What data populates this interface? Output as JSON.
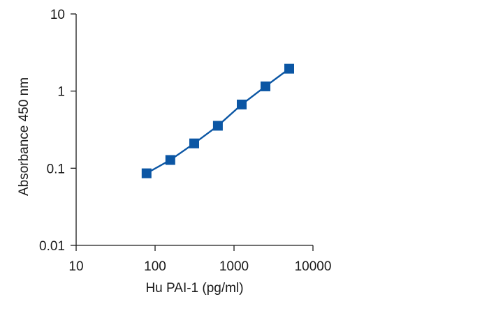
{
  "chart_data": {
    "type": "line",
    "title": "",
    "xlabel": "Hu PAI-1 (pg/ml)",
    "ylabel": "Absorbance 450 nm",
    "x_scale": "log",
    "y_scale": "log",
    "xlim": [
      10,
      10000
    ],
    "ylim": [
      0.01,
      10
    ],
    "x_ticks": [
      "10",
      "100",
      "1000",
      "10000"
    ],
    "y_ticks": [
      "0.01",
      "0.1",
      "1",
      "10"
    ],
    "grid": false,
    "legend": "none",
    "marker": "square",
    "series_color": "#0b56a4",
    "series": [
      {
        "x": [
          78,
          156,
          313,
          625,
          1250,
          2500,
          5000
        ],
        "values": [
          0.086,
          0.128,
          0.21,
          0.355,
          0.67,
          1.15,
          1.95
        ]
      }
    ]
  }
}
